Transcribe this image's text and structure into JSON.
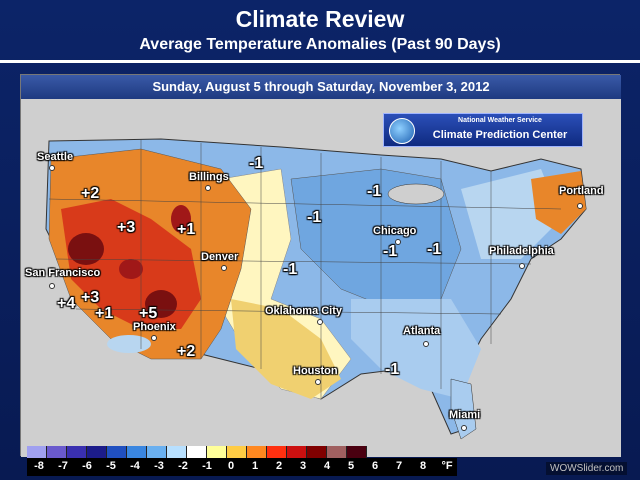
{
  "header": {
    "title": "Climate Review",
    "subtitle": "Average Temperature Anomalies (Past 90 Days)"
  },
  "map": {
    "date_range": "Sunday, August 5 through Saturday, November 3, 2012",
    "badge": {
      "agency": "National Weather Service",
      "center": "Climate Prediction Center"
    },
    "cities": [
      {
        "name": "Seattle",
        "key": "seattle"
      },
      {
        "name": "Billings",
        "key": "billings"
      },
      {
        "name": "Portland",
        "key": "portland"
      },
      {
        "name": "San Francisco",
        "key": "san-francisco"
      },
      {
        "name": "Denver",
        "key": "denver"
      },
      {
        "name": "Chicago",
        "key": "chicago"
      },
      {
        "name": "Philadelphia",
        "key": "philadelphia"
      },
      {
        "name": "Oklahoma City",
        "key": "oklahoma-city"
      },
      {
        "name": "Phoenix",
        "key": "phoenix"
      },
      {
        "name": "Atlanta",
        "key": "atlanta"
      },
      {
        "name": "Houston",
        "key": "houston"
      },
      {
        "name": "Miami",
        "key": "miami"
      }
    ],
    "anomaly_labels": [
      "+2",
      "+3",
      "+1",
      "+4",
      "+3",
      "+1",
      "+5",
      "+2",
      "-1",
      "-1",
      "-1",
      "-1",
      "-1",
      "-1",
      "-1",
      "-1"
    ],
    "colors": {
      "warm_strong": "#7a1010",
      "warm_mid": "#d83a1a",
      "warm_light": "#e8862a",
      "neutral_warm": "#f0d070",
      "neutral": "#ffffcc",
      "cool_light": "#b8d6f0",
      "cool_mid": "#7ab0e6",
      "cool_strong": "#4a86d0"
    }
  },
  "legend": {
    "values": [
      "-8",
      "-7",
      "-6",
      "-5",
      "-4",
      "-3",
      "-2",
      "-1",
      "0",
      "1",
      "2",
      "3",
      "4",
      "5",
      "6",
      "7",
      "8"
    ],
    "colors": [
      "#a0a0f0",
      "#6a5acd",
      "#3a30b0",
      "#1c1c8a",
      "#2050c0",
      "#3a86e0",
      "#6ab0f0",
      "#b8e0ff",
      "#ffffff",
      "#ffff99",
      "#ffcc44",
      "#ff8820",
      "#ff3010",
      "#cc1010",
      "#800000",
      "#a06060",
      "#4a0010"
    ],
    "unit": "°F"
  },
  "watermark": "WOWSlider.com"
}
